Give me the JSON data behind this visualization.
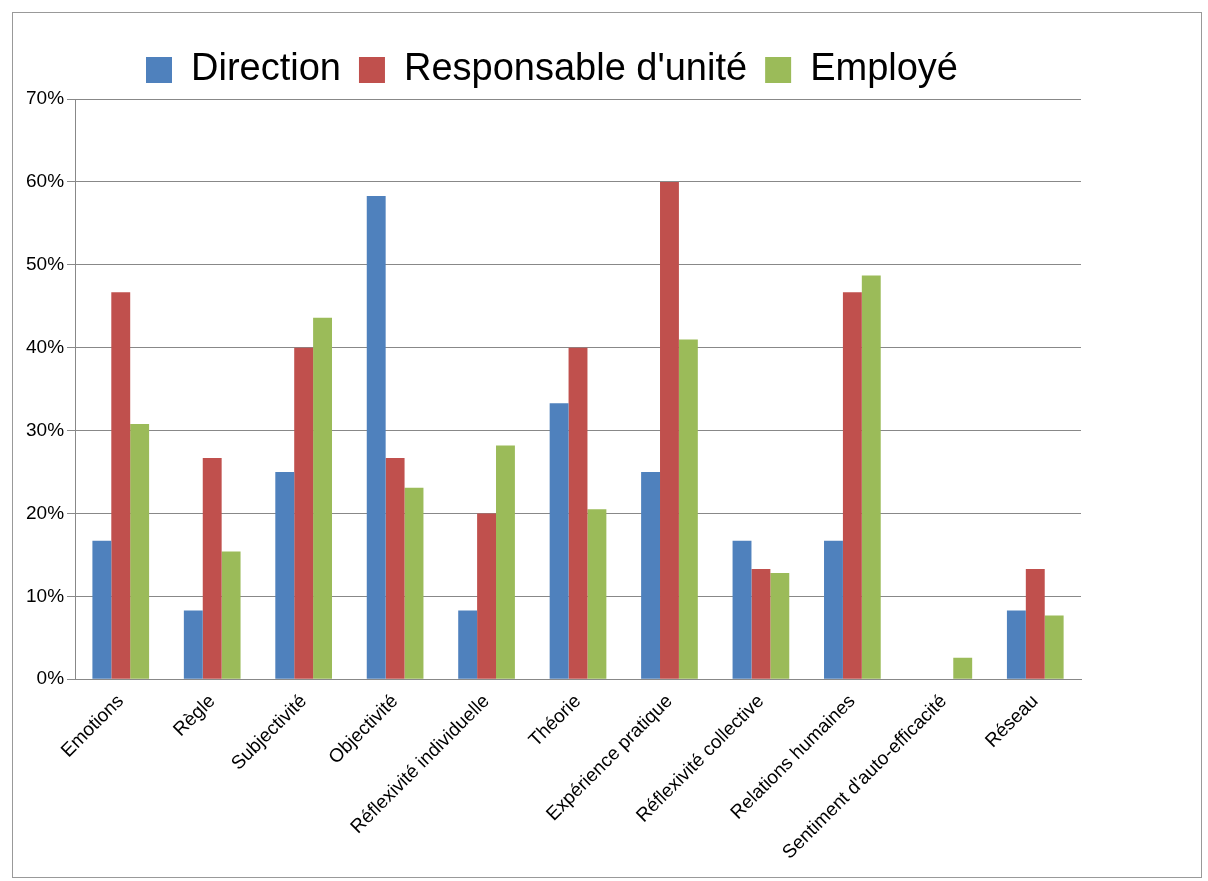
{
  "chart_data": {
    "type": "bar",
    "categories": [
      "Emotions",
      "Règle",
      "Subjectivité",
      "Objectivité",
      "Réflexivité individuelle",
      "Théorie",
      "Expérience pratique",
      "Réflexivité collective",
      "Relations humaines",
      "Sentiment d'auto-efficacité",
      "Réseau"
    ],
    "series": [
      {
        "name": "Direction",
        "color": "#4f81bd",
        "values": [
          16.7,
          8.3,
          25,
          58.3,
          8.3,
          33.3,
          25,
          16.7,
          16.7,
          0,
          8.3
        ]
      },
      {
        "name": "Responsable d'unité",
        "color": "#c0504d",
        "values": [
          46.7,
          26.7,
          40,
          26.7,
          20,
          40,
          60,
          13.3,
          46.7,
          0,
          13.3
        ]
      },
      {
        "name": "Employé",
        "color": "#9bbb59",
        "values": [
          30.8,
          15.4,
          43.6,
          23.1,
          28.2,
          20.5,
          41,
          12.8,
          48.7,
          2.6,
          7.7
        ]
      }
    ],
    "ylim": [
      0,
      70
    ],
    "yticks": [
      {
        "value": 0,
        "label": "0%"
      },
      {
        "value": 10,
        "label": "10%"
      },
      {
        "value": 20,
        "label": "20%"
      },
      {
        "value": 30,
        "label": "30%"
      },
      {
        "value": 40,
        "label": "40%"
      },
      {
        "value": 50,
        "label": "50%"
      },
      {
        "value": 60,
        "label": "60%"
      },
      {
        "value": 70,
        "label": "70%"
      }
    ],
    "grid": "y",
    "legend": "top"
  }
}
